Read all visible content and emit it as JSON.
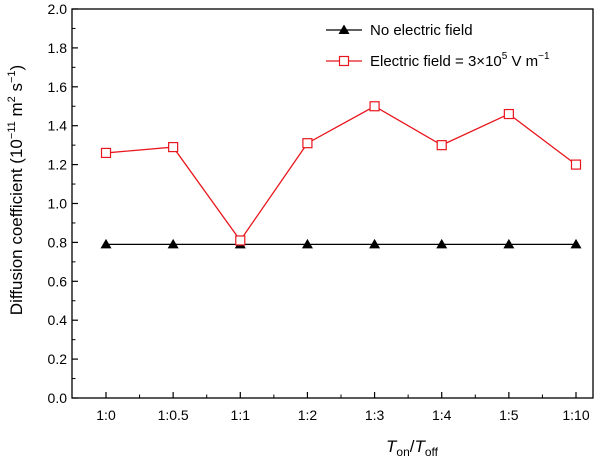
{
  "chart_data": {
    "type": "line",
    "categories": [
      "1:0",
      "1:0.5",
      "1:1",
      "1:2",
      "1:3",
      "1:4",
      "1:5",
      "1:10"
    ],
    "series": [
      {
        "name": "No electric field",
        "values": [
          0.79,
          0.79,
          0.79,
          0.79,
          0.79,
          0.79,
          0.79,
          0.79
        ],
        "color": "#000000",
        "marker": "filled-triangle"
      },
      {
        "name_parts": {
          "prefix": "Electric field = 3",
          "times": "×",
          "base": "10",
          "exp": "5",
          "unit": " V m",
          "unit_exp": "−1"
        },
        "values": [
          1.26,
          1.29,
          0.81,
          1.31,
          1.5,
          1.3,
          1.46,
          1.2
        ],
        "color": "#e8161d",
        "marker": "open-square"
      }
    ],
    "xlabel": {
      "T1": "T",
      "sub1": "on",
      "slash": "/",
      "T2": "T",
      "sub2": "off"
    },
    "ylabel": {
      "text": "Diffusion coefficient (10",
      "exp1": "−11",
      "m": " m",
      "exp2": "2",
      "s": " s",
      "exp3": "−1",
      "close": ")"
    },
    "ylim": [
      0,
      2.0
    ],
    "yticks": [
      "0.0",
      "0.2",
      "0.4",
      "0.6",
      "0.8",
      "1.0",
      "1.2",
      "1.4",
      "1.6",
      "1.8",
      "2.0"
    ],
    "grid": false,
    "legend_position": "top-right"
  }
}
